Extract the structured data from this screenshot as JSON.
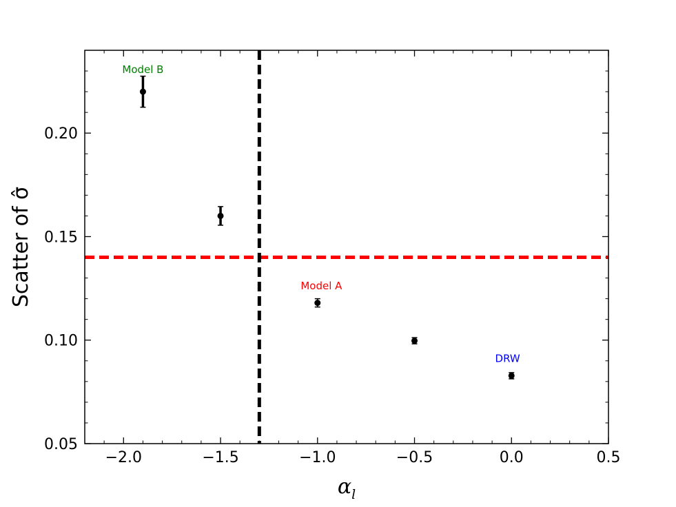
{
  "chart_data": {
    "type": "scatter",
    "title": "",
    "xlabel": "α",
    "xlabel_subscript": "l",
    "ylabel": "Scatter of σ̂",
    "xlim": [
      -2.2,
      0.5
    ],
    "ylim": [
      0.05,
      0.24
    ],
    "xticks": [
      -2.0,
      -1.5,
      -1.0,
      -0.5,
      0.0,
      0.5
    ],
    "xtick_labels": [
      "−2.0",
      "−1.5",
      "−1.0",
      "−0.5",
      "0.0",
      "0.5"
    ],
    "yticks": [
      0.05,
      0.1,
      0.15,
      0.2
    ],
    "ytick_labels": [
      "0.05",
      "0.10",
      "0.15",
      "0.20"
    ],
    "grid": false,
    "series": [
      {
        "marker_color": "#000000",
        "points": [
          {
            "x": -1.9,
            "y": 0.22,
            "yerr": 0.0075
          },
          {
            "x": -1.5,
            "y": 0.16,
            "yerr": 0.0045
          },
          {
            "x": -1.0,
            "y": 0.118,
            "yerr": 0.002
          },
          {
            "x": -0.5,
            "y": 0.0997,
            "yerr": 0.0015
          },
          {
            "x": 0.0,
            "y": 0.0828,
            "yerr": 0.0015
          }
        ]
      }
    ],
    "reference_lines": [
      {
        "orientation": "horizontal",
        "value": 0.14,
        "color": "#ff0000",
        "style": "dashed"
      },
      {
        "orientation": "vertical",
        "value": -1.3,
        "color": "#000000",
        "style": "dashed"
      }
    ],
    "annotations": [
      {
        "text": "Model B",
        "x": -1.9,
        "y": 0.229,
        "color": "#008000"
      },
      {
        "text": "Model A",
        "x": -0.98,
        "y": 0.1245,
        "color": "#ff0000"
      },
      {
        "text": "DRW",
        "x": -0.02,
        "y": 0.0895,
        "color": "#0000ff"
      }
    ]
  }
}
